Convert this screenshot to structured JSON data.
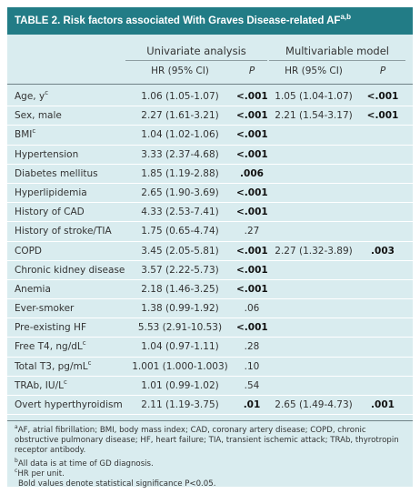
{
  "table": {
    "title": "TABLE 2. Risk factors associated With Graves Disease-related AF",
    "title_sup": "a,b",
    "group_univariate": "Univariate analysis",
    "group_multivariable": "Multivariable model",
    "col_hr": "HR (95% CI)",
    "col_p": "P",
    "rows": [
      {
        "name": "Age, y",
        "sup": "c",
        "hr1": "1.06 (1.05-1.07)",
        "p1": "<.001",
        "p1_bold": true,
        "hr2": "1.05 (1.04-1.07)",
        "p2": "<.001",
        "p2_bold": true
      },
      {
        "name": "Sex, male",
        "sup": "",
        "hr1": "2.27 (1.61-3.21)",
        "p1": "<.001",
        "p1_bold": true,
        "hr2": "2.21 (1.54-3.17)",
        "p2": "<.001",
        "p2_bold": true
      },
      {
        "name": "BMI",
        "sup": "c",
        "hr1": "1.04 (1.02-1.06)",
        "p1": "<.001",
        "p1_bold": true,
        "hr2": "",
        "p2": "",
        "p2_bold": false
      },
      {
        "name": "Hypertension",
        "sup": "",
        "hr1": "3.33 (2.37-4.68)",
        "p1": "<.001",
        "p1_bold": true,
        "hr2": "",
        "p2": "",
        "p2_bold": false
      },
      {
        "name": "Diabetes mellitus",
        "sup": "",
        "hr1": "1.85 (1.19-2.88)",
        "p1": ".006",
        "p1_bold": true,
        "hr2": "",
        "p2": "",
        "p2_bold": false
      },
      {
        "name": "Hyperlipidemia",
        "sup": "",
        "hr1": "2.65 (1.90-3.69)",
        "p1": "<.001",
        "p1_bold": true,
        "hr2": "",
        "p2": "",
        "p2_bold": false
      },
      {
        "name": "History of CAD",
        "sup": "",
        "hr1": "4.33 (2.53-7.41)",
        "p1": "<.001",
        "p1_bold": true,
        "hr2": "",
        "p2": "",
        "p2_bold": false
      },
      {
        "name": "History of stroke/TIA",
        "sup": "",
        "hr1": "1.75 (0.65-4.74)",
        "p1": ".27",
        "p1_bold": false,
        "hr2": "",
        "p2": "",
        "p2_bold": false
      },
      {
        "name": "COPD",
        "sup": "",
        "hr1": "3.45 (2.05-5.81)",
        "p1": "<.001",
        "p1_bold": true,
        "hr2": "2.27 (1.32-3.89)",
        "p2": ".003",
        "p2_bold": true
      },
      {
        "name": "Chronic kidney disease",
        "sup": "",
        "hr1": "3.57 (2.22-5.73)",
        "p1": "<.001",
        "p1_bold": true,
        "hr2": "",
        "p2": "",
        "p2_bold": false
      },
      {
        "name": "Anemia",
        "sup": "",
        "hr1": "2.18 (1.46-3.25)",
        "p1": "<.001",
        "p1_bold": true,
        "hr2": "",
        "p2": "",
        "p2_bold": false
      },
      {
        "name": "Ever-smoker",
        "sup": "",
        "hr1": "1.38 (0.99-1.92)",
        "p1": ".06",
        "p1_bold": false,
        "hr2": "",
        "p2": "",
        "p2_bold": false
      },
      {
        "name": "Pre-existing HF",
        "sup": "",
        "hr1": "5.53 (2.91-10.53)",
        "p1": "<.001",
        "p1_bold": true,
        "hr2": "",
        "p2": "",
        "p2_bold": false
      },
      {
        "name": "Free T4, ng/dL",
        "sup": "c",
        "hr1": "1.04 (0.97-1.11)",
        "p1": ".28",
        "p1_bold": false,
        "hr2": "",
        "p2": "",
        "p2_bold": false
      },
      {
        "name": "Total T3, pg/mL",
        "sup": "c",
        "hr1": "1.001 (1.000-1.003)",
        "p1": ".10",
        "p1_bold": false,
        "hr2": "",
        "p2": "",
        "p2_bold": false
      },
      {
        "name": "TRAb, IU/L",
        "sup": "c",
        "hr1": "1.01 (0.99-1.02)",
        "p1": ".54",
        "p1_bold": false,
        "hr2": "",
        "p2": "",
        "p2_bold": false
      },
      {
        "name": "Overt hyperthyroidism",
        "sup": "",
        "hr1": "2.11 (1.19-3.75)",
        "p1": ".01",
        "p1_bold": true,
        "hr2": "2.65 (1.49-4.73)",
        "p2": ".001",
        "p2_bold": true
      }
    ],
    "footnotes": [
      {
        "sup": "a",
        "text": "AF, atrial fibrillation; BMI, body mass index; CAD, coronary artery disease; COPD, chronic obstructive pulmonary disease; HF, heart failure; TIA, transient ischemic attack; TRAb, thyrotropin receptor antibody."
      },
      {
        "sup": "b",
        "text": "All data is at time of GD diagnosis."
      },
      {
        "sup": "c",
        "text": "HR per unit."
      },
      {
        "sup": "",
        "text": "Bold values denote statistical significance P<0.05."
      }
    ]
  },
  "colors": {
    "title_bar": "#227c86",
    "table_background": "#d9ecef"
  }
}
